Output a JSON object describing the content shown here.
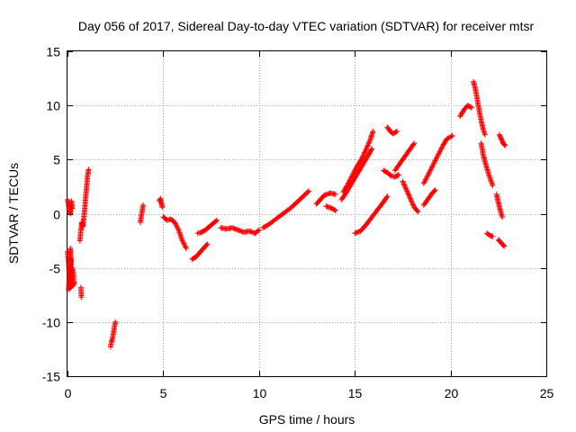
{
  "chart_data": {
    "type": "scatter",
    "title": "Day 056 of 2017, Sidereal Day-to-day VTEC variation (SDTVAR) for receiver mtsr",
    "xlabel": "GPS time / hours",
    "ylabel": "SDTVAR / TECUs",
    "xlim": [
      0,
      25
    ],
    "ylim": [
      -15,
      15
    ],
    "xticks": [
      0,
      5,
      10,
      15,
      20,
      25
    ],
    "yticks": [
      -15,
      -10,
      -5,
      0,
      5,
      10,
      15
    ],
    "grid": true,
    "marker": "+",
    "color": "#ff0000",
    "series": [
      {
        "name": "SDTVAR",
        "segments": [
          [
            [
              0.0,
              1.3
            ],
            [
              0.05,
              0.8
            ],
            [
              0.1,
              0.3
            ],
            [
              0.15,
              0.0
            ],
            [
              0.2,
              1.2
            ],
            [
              0.25,
              0.5
            ]
          ],
          [
            [
              0.0,
              -3.5
            ],
            [
              0.05,
              -4.5
            ],
            [
              0.1,
              -5.5
            ],
            [
              0.12,
              -6.8
            ],
            [
              0.15,
              -3.2
            ],
            [
              0.2,
              -6.5
            ],
            [
              0.25,
              -5.0
            ],
            [
              0.3,
              -5.5
            ],
            [
              0.32,
              -6.2
            ],
            [
              0.35,
              -6.5
            ],
            [
              0.05,
              -7.0
            ],
            [
              0.2,
              -4.2
            ]
          ],
          [
            [
              0.7,
              -6.8
            ],
            [
              0.72,
              -7.7
            ]
          ],
          [
            [
              0.65,
              -2.5
            ],
            [
              0.7,
              -1.5
            ],
            [
              0.75,
              -0.8
            ],
            [
              0.8,
              -1.2
            ],
            [
              0.85,
              -0.5
            ],
            [
              0.9,
              0.5
            ],
            [
              0.95,
              1.5
            ],
            [
              1.0,
              2.5
            ],
            [
              1.05,
              3.5
            ],
            [
              1.1,
              4.1
            ]
          ],
          [
            [
              2.25,
              -12.3
            ],
            [
              2.3,
              -11.8
            ],
            [
              2.35,
              -11.5
            ],
            [
              2.4,
              -11.0
            ],
            [
              2.45,
              -10.5
            ],
            [
              2.5,
              -10.0
            ]
          ],
          [
            [
              3.8,
              -0.8
            ],
            [
              3.85,
              -0.3
            ],
            [
              3.9,
              0.3
            ],
            [
              3.95,
              0.8
            ]
          ],
          [
            [
              4.8,
              1.2
            ],
            [
              4.85,
              1.4
            ],
            [
              4.9,
              1.0
            ],
            [
              4.95,
              0.6
            ]
          ],
          [
            [
              5.0,
              -0.3
            ],
            [
              5.2,
              -0.6
            ],
            [
              5.4,
              -0.5
            ],
            [
              5.6,
              -0.8
            ],
            [
              5.8,
              -1.5
            ],
            [
              6.0,
              -2.5
            ],
            [
              6.2,
              -3.2
            ]
          ],
          [
            [
              6.5,
              -4.2
            ],
            [
              6.7,
              -4.0
            ],
            [
              6.9,
              -3.6
            ],
            [
              7.1,
              -3.2
            ],
            [
              7.3,
              -2.8
            ]
          ],
          [
            [
              6.8,
              -1.8
            ],
            [
              7.0,
              -1.7
            ],
            [
              7.2,
              -1.5
            ],
            [
              7.4,
              -1.2
            ],
            [
              7.6,
              -0.9
            ],
            [
              7.8,
              -0.6
            ]
          ],
          [
            [
              8.0,
              -1.3
            ],
            [
              8.3,
              -1.4
            ],
            [
              8.6,
              -1.3
            ],
            [
              8.9,
              -1.5
            ],
            [
              9.2,
              -1.7
            ],
            [
              9.5,
              -1.6
            ],
            [
              9.8,
              -1.8
            ],
            [
              10.0,
              -1.5
            ]
          ],
          [
            [
              10.2,
              -1.3
            ],
            [
              10.5,
              -1.0
            ],
            [
              10.8,
              -0.6
            ],
            [
              11.1,
              -0.2
            ],
            [
              11.4,
              0.2
            ],
            [
              11.7,
              0.6
            ],
            [
              12.0,
              1.1
            ],
            [
              12.3,
              1.6
            ],
            [
              12.6,
              2.1
            ]
          ],
          [
            [
              13.0,
              0.9
            ],
            [
              13.2,
              1.3
            ],
            [
              13.4,
              1.7
            ],
            [
              13.7,
              1.9
            ],
            [
              14.0,
              1.8
            ]
          ],
          [
            [
              13.5,
              0.7
            ],
            [
              13.8,
              0.5
            ],
            [
              14.0,
              0.3
            ]
          ],
          [
            [
              14.3,
              1.3
            ],
            [
              14.5,
              1.8
            ],
            [
              14.7,
              2.4
            ],
            [
              14.9,
              3.0
            ],
            [
              15.1,
              3.6
            ],
            [
              15.3,
              4.2
            ],
            [
              15.5,
              4.8
            ],
            [
              15.7,
              5.4
            ],
            [
              15.9,
              6.0
            ]
          ],
          [
            [
              14.4,
              2.0
            ],
            [
              14.6,
              2.6
            ],
            [
              14.8,
              3.3
            ],
            [
              15.0,
              4.0
            ],
            [
              15.2,
              4.6
            ],
            [
              15.4,
              5.2
            ],
            [
              15.6,
              6.0
            ],
            [
              15.8,
              6.8
            ],
            [
              15.95,
              7.6
            ]
          ],
          [
            [
              15.0,
              -1.8
            ],
            [
              15.3,
              -1.6
            ],
            [
              15.6,
              -1.0
            ],
            [
              15.9,
              -0.3
            ],
            [
              16.2,
              0.4
            ],
            [
              16.5,
              1.1
            ],
            [
              16.7,
              1.6
            ]
          ],
          [
            [
              16.5,
              4.0
            ],
            [
              16.7,
              3.8
            ],
            [
              16.9,
              3.5
            ],
            [
              17.1,
              3.4
            ],
            [
              17.3,
              3.6
            ]
          ],
          [
            [
              16.7,
              8.0
            ],
            [
              16.85,
              7.6
            ],
            [
              17.0,
              7.4
            ],
            [
              17.2,
              7.6
            ]
          ],
          [
            [
              17.1,
              4.0
            ],
            [
              17.3,
              4.5
            ],
            [
              17.5,
              5.0
            ],
            [
              17.7,
              5.5
            ],
            [
              17.9,
              6.0
            ],
            [
              18.1,
              6.5
            ]
          ],
          [
            [
              17.5,
              3.0
            ],
            [
              17.7,
              2.2
            ],
            [
              17.9,
              1.4
            ],
            [
              18.1,
              0.6
            ],
            [
              18.3,
              0.2
            ]
          ],
          [
            [
              18.6,
              0.8
            ],
            [
              18.8,
              1.3
            ],
            [
              19.0,
              1.8
            ],
            [
              19.2,
              2.2
            ]
          ],
          [
            [
              18.6,
              2.8
            ],
            [
              18.8,
              3.5
            ],
            [
              19.0,
              4.2
            ],
            [
              19.2,
              4.9
            ],
            [
              19.4,
              5.6
            ],
            [
              19.6,
              6.3
            ],
            [
              19.8,
              6.9
            ],
            [
              20.1,
              7.2
            ]
          ],
          [
            [
              20.5,
              9.0
            ],
            [
              20.7,
              9.6
            ],
            [
              20.9,
              10.0
            ],
            [
              21.1,
              9.8
            ]
          ],
          [
            [
              21.2,
              12.2
            ],
            [
              21.3,
              11.5
            ],
            [
              21.4,
              10.5
            ],
            [
              21.5,
              9.5
            ],
            [
              21.6,
              8.6
            ],
            [
              21.7,
              7.8
            ],
            [
              21.8,
              7.3
            ]
          ],
          [
            [
              21.6,
              6.5
            ],
            [
              21.7,
              5.5
            ],
            [
              21.8,
              4.8
            ],
            [
              21.9,
              4.2
            ],
            [
              22.0,
              3.6
            ],
            [
              22.1,
              3.1
            ],
            [
              22.2,
              2.6
            ]
          ],
          [
            [
              21.9,
              -1.8
            ],
            [
              22.05,
              -2.0
            ],
            [
              22.2,
              -2.1
            ]
          ],
          [
            [
              22.4,
              1.8
            ],
            [
              22.5,
              1.0
            ],
            [
              22.6,
              0.3
            ],
            [
              22.7,
              -0.3
            ]
          ],
          [
            [
              22.5,
              -2.4
            ],
            [
              22.6,
              -2.6
            ],
            [
              22.7,
              -2.8
            ],
            [
              22.8,
              -3.0
            ]
          ],
          [
            [
              22.55,
              7.3
            ],
            [
              22.65,
              6.9
            ],
            [
              22.75,
              6.5
            ],
            [
              22.85,
              6.3
            ]
          ]
        ]
      }
    ]
  }
}
